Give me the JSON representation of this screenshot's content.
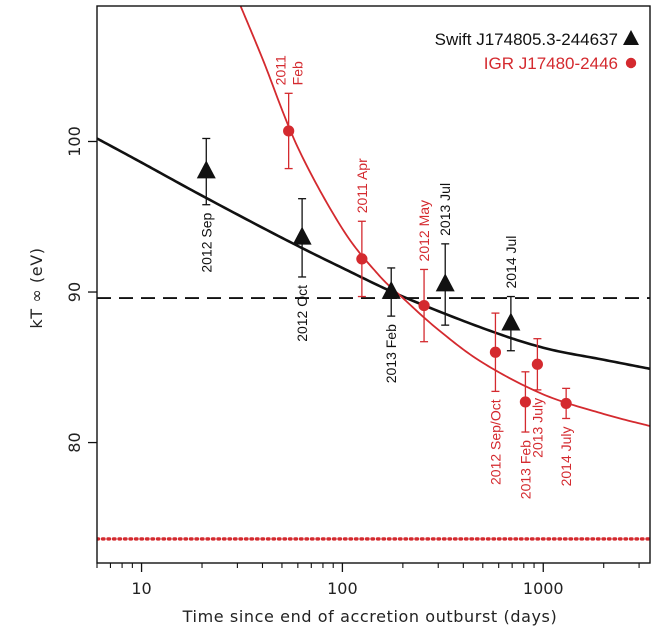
{
  "chart_data": {
    "type": "scatter",
    "title": "",
    "xlabel": "Time since end of accretion outburst (days)",
    "ylabel": "kT ∞ (eV)",
    "xscale": "log",
    "xlim": [
      6,
      3400
    ],
    "ylim": [
      72,
      109
    ],
    "xticks": [
      {
        "value": 10,
        "label": "10"
      },
      {
        "value": 100,
        "label": "100"
      },
      {
        "value": 1000,
        "label": "1000"
      }
    ],
    "yticks": [
      {
        "value": 80,
        "label": "80"
      },
      {
        "value": 90,
        "label": "90"
      },
      {
        "value": 100,
        "label": "100"
      }
    ],
    "grid": false,
    "legend_position": "top-right",
    "series": [
      {
        "name": "Swift J174805.3-244637",
        "color": "#111111",
        "marker": "triangle",
        "points": [
          {
            "x": 21,
            "y": 98.0,
            "err": 2.2,
            "label": "2012 Sep",
            "label_pos": "below"
          },
          {
            "x": 63,
            "y": 93.6,
            "err": 2.6,
            "label": "2012 Oct",
            "label_pos": "below"
          },
          {
            "x": 175,
            "y": 90.0,
            "err": 1.6,
            "label": "2013 Feb",
            "label_pos": "below"
          },
          {
            "x": 325,
            "y": 90.5,
            "err": 2.7,
            "label": "2013 Jul",
            "label_pos": "above"
          },
          {
            "x": 690,
            "y": 87.9,
            "err": 1.8,
            "label": "2014 Jul",
            "label_pos": "above"
          }
        ]
      },
      {
        "name": "IGR J17480-2446",
        "color": "#d42a2f",
        "marker": "circle",
        "points": [
          {
            "x": 54,
            "y": 100.7,
            "err": 2.5,
            "label": "2011 Feb",
            "label_pos": "above"
          },
          {
            "x": 125,
            "y": 92.2,
            "err": 2.5,
            "label": "2011 Apr",
            "label_pos": "above"
          },
          {
            "x": 255,
            "y": 89.1,
            "err": 2.4,
            "label": "2012 May",
            "label_pos": "above"
          },
          {
            "x": 578,
            "y": 86.0,
            "err": 2.6,
            "label": "2012 Sep/Oct",
            "label_pos": "below"
          },
          {
            "x": 815,
            "y": 82.7,
            "err": 2.0,
            "label": "2013 Feb",
            "label_pos": "below"
          },
          {
            "x": 935,
            "y": 85.2,
            "err": 1.7,
            "label": "2013 July",
            "label_pos": "below"
          },
          {
            "x": 1300,
            "y": 82.6,
            "err": 1.0,
            "label": "2014 July",
            "label_pos": "below"
          }
        ]
      }
    ],
    "curves": [
      {
        "name": "swift-fit",
        "color": "#111111",
        "points": [
          [
            6,
            100.2
          ],
          [
            10,
            98.6
          ],
          [
            20,
            96.4
          ],
          [
            50,
            93.6
          ],
          [
            100,
            91.6
          ],
          [
            200,
            89.7
          ],
          [
            500,
            87.6
          ],
          [
            1000,
            86.3
          ],
          [
            2000,
            85.5
          ],
          [
            3400,
            84.9
          ]
        ]
      },
      {
        "name": "igr-fit",
        "color": "#d42a2f",
        "points": [
          [
            30,
            109.5
          ],
          [
            40,
            105.5
          ],
          [
            60,
            99.6
          ],
          [
            100,
            94.2
          ],
          [
            150,
            91.2
          ],
          [
            200,
            89.6
          ],
          [
            300,
            87.5
          ],
          [
            500,
            85.3
          ],
          [
            1000,
            83.2
          ],
          [
            2000,
            81.9
          ],
          [
            3400,
            81.1
          ]
        ]
      }
    ],
    "reference_lines": [
      {
        "name": "dashed-level",
        "y": 89.6,
        "style": "dashed",
        "color": "#111111"
      },
      {
        "name": "dotted-level",
        "y": 73.6,
        "style": "dotted",
        "color": "#d42a2f"
      }
    ]
  }
}
